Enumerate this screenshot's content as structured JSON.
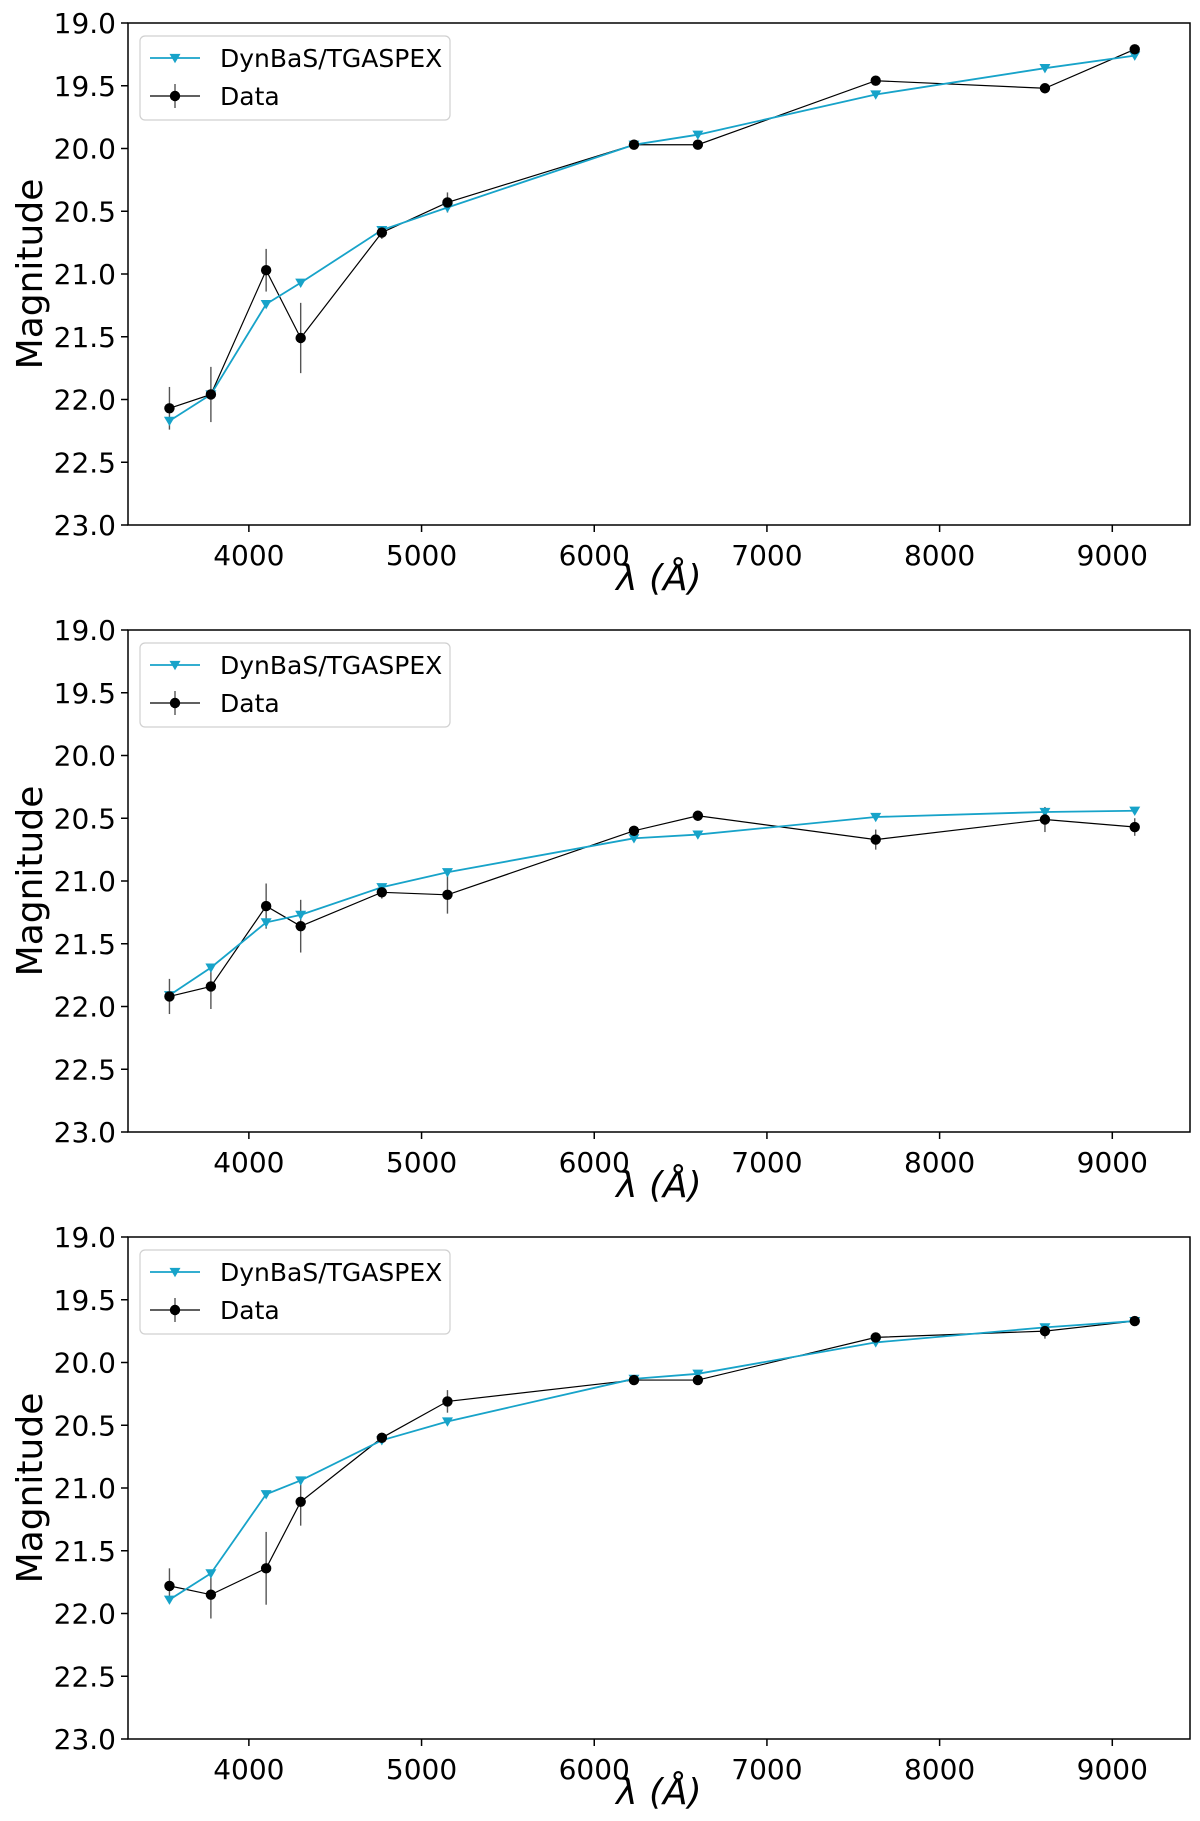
{
  "colors": {
    "model": "#17a3c9",
    "data": "#000000",
    "errorbar": "#555555"
  },
  "chart_data": [
    {
      "type": "line",
      "title": "",
      "xlabel": "λ (Å)",
      "ylabel": "Magnitude",
      "xlim": [
        3300,
        9450
      ],
      "ylim": [
        19.0,
        23.0
      ],
      "y_inverted": true,
      "xticks": [
        4000,
        5000,
        6000,
        7000,
        8000,
        9000
      ],
      "yticks": [
        "19.0",
        "19.5",
        "20.0",
        "20.5",
        "21.0",
        "21.5",
        "22.0",
        "22.5",
        "23.0"
      ],
      "legend": {
        "position": "top-left",
        "entries": [
          "DynBaS/TGASPEX",
          "Data"
        ]
      },
      "series": [
        {
          "name": "DynBaS/TGASPEX",
          "marker": "triangle-down",
          "x": [
            3540,
            3780,
            4100,
            4300,
            4770,
            5150,
            6230,
            6600,
            7630,
            8610,
            9130
          ],
          "y": [
            22.17,
            21.96,
            21.24,
            21.07,
            20.65,
            20.47,
            19.97,
            19.89,
            19.57,
            19.36,
            19.26
          ]
        },
        {
          "name": "Data",
          "marker": "circle",
          "x": [
            3540,
            3780,
            4100,
            4300,
            4770,
            5150,
            6230,
            6600,
            7630,
            8610,
            9130
          ],
          "y": [
            22.07,
            21.96,
            20.97,
            21.51,
            20.67,
            20.43,
            19.97,
            19.97,
            19.46,
            19.52,
            19.21
          ],
          "yerr": [
            0.17,
            0.22,
            0.17,
            0.28,
            0.05,
            0.08,
            0.03,
            0.03,
            0.03,
            0.03,
            0.02
          ]
        }
      ]
    },
    {
      "type": "line",
      "title": "",
      "xlabel": "λ (Å)",
      "ylabel": "Magnitude",
      "xlim": [
        3300,
        9450
      ],
      "ylim": [
        19.0,
        23.0
      ],
      "y_inverted": true,
      "xticks": [
        4000,
        5000,
        6000,
        7000,
        8000,
        9000
      ],
      "yticks": [
        "19.0",
        "19.5",
        "20.0",
        "20.5",
        "21.0",
        "21.5",
        "22.0",
        "22.5",
        "23.0"
      ],
      "legend": {
        "position": "top-left",
        "entries": [
          "DynBaS/TGASPEX",
          "Data"
        ]
      },
      "series": [
        {
          "name": "DynBaS/TGASPEX",
          "marker": "triangle-down",
          "x": [
            3540,
            3780,
            4100,
            4300,
            4770,
            5150,
            6230,
            6600,
            7630,
            8610,
            9130
          ],
          "y": [
            21.91,
            21.69,
            21.33,
            21.27,
            21.05,
            20.93,
            20.66,
            20.63,
            20.49,
            20.45,
            20.44
          ]
        },
        {
          "name": "Data",
          "marker": "circle",
          "x": [
            3540,
            3780,
            4100,
            4300,
            4770,
            5150,
            6230,
            6600,
            7630,
            8610,
            9130
          ],
          "y": [
            21.92,
            21.84,
            21.2,
            21.36,
            21.09,
            21.11,
            20.6,
            20.48,
            20.67,
            20.51,
            20.57
          ],
          "yerr": [
            0.14,
            0.18,
            0.18,
            0.21,
            0.05,
            0.15,
            0.03,
            0.03,
            0.08,
            0.1,
            0.07
          ]
        }
      ]
    },
    {
      "type": "line",
      "title": "",
      "xlabel": "λ (Å)",
      "ylabel": "Magnitude",
      "xlim": [
        3300,
        9450
      ],
      "ylim": [
        19.0,
        23.0
      ],
      "y_inverted": true,
      "xticks": [
        4000,
        5000,
        6000,
        7000,
        8000,
        9000
      ],
      "yticks": [
        "19.0",
        "19.5",
        "20.0",
        "20.5",
        "21.0",
        "21.5",
        "22.0",
        "22.5",
        "23.0"
      ],
      "legend": {
        "position": "top-left",
        "entries": [
          "DynBaS/TGASPEX",
          "Data"
        ]
      },
      "series": [
        {
          "name": "DynBaS/TGASPEX",
          "marker": "triangle-down",
          "x": [
            3540,
            3780,
            4100,
            4300,
            4770,
            5150,
            6230,
            6600,
            7630,
            8610,
            9130
          ],
          "y": [
            21.89,
            21.68,
            21.05,
            20.94,
            20.62,
            20.47,
            20.13,
            20.09,
            19.84,
            19.72,
            19.67
          ]
        },
        {
          "name": "Data",
          "marker": "circle",
          "x": [
            3540,
            3780,
            4100,
            4300,
            4770,
            5150,
            6230,
            6600,
            7630,
            8610,
            9130
          ],
          "y": [
            21.78,
            21.85,
            21.64,
            21.11,
            20.6,
            20.31,
            20.14,
            20.14,
            19.8,
            19.75,
            19.67
          ],
          "yerr": [
            0.14,
            0.19,
            0.29,
            0.19,
            0.04,
            0.09,
            0.02,
            0.03,
            0.03,
            0.06,
            0.02
          ]
        }
      ]
    }
  ]
}
